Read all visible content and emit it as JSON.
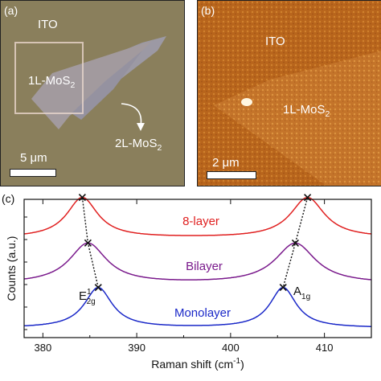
{
  "panel_a": {
    "letter": "(a)",
    "ito_label": "ITO",
    "mono_label_base": "1L-MoS",
    "mono_label_sub": "2",
    "bi_label_base": "2L-MoS",
    "bi_label_sub": "2",
    "scalebar_label": "5 μm"
  },
  "panel_b": {
    "letter": "(b)",
    "ito_label": "ITO",
    "mono_label_base": "1L-MoS",
    "mono_label_sub": "2",
    "scalebar_label": "2 μm"
  },
  "chart_data": {
    "type": "line",
    "panel_letter": "(c)",
    "xlabel": "Raman shift (cm",
    "xlabel_sup": "-1",
    "xlabel_tail": ")",
    "ylabel": "Counts (a.u.)",
    "xlim": [
      378,
      415
    ],
    "xticks": [
      380,
      390,
      400,
      410
    ],
    "grid": false,
    "series": [
      {
        "name": "8-layer",
        "color": "#e02020",
        "peaks": [
          [
            384.2,
            1.0
          ],
          [
            408.2,
            1.0
          ]
        ]
      },
      {
        "name": "Bilayer",
        "color": "#7a1a8c",
        "peaks": [
          [
            384.8,
            1.0
          ],
          [
            406.9,
            1.0
          ]
        ]
      },
      {
        "name": "Monolayer",
        "color": "#1a28c8",
        "peaks": [
          [
            385.9,
            1.0
          ],
          [
            405.6,
            1.0
          ]
        ]
      }
    ],
    "peak_labels": {
      "e_base": "E",
      "e_sup": "1",
      "e_sub": "2g",
      "a_base": "A",
      "a_sub": "1g"
    }
  }
}
